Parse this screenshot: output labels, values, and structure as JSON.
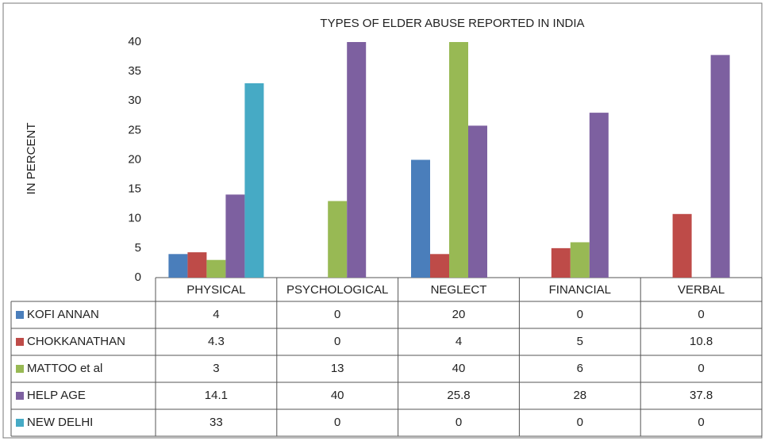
{
  "chart_data": {
    "type": "bar",
    "title": "TYPES OF  ELDER ABUSE REPORTED IN INDIA",
    "y_label": "IN PERCENT",
    "categories": [
      "PHYSICAL",
      "PSYCHOLOGICAL",
      "NEGLECT",
      "FINANCIAL",
      "VERBAL"
    ],
    "series": [
      {
        "name": "KOFI ANNAN",
        "color": "#4a7ebb",
        "values": [
          4,
          0,
          20,
          0,
          0
        ]
      },
      {
        "name": "CHOKKANATHAN",
        "color": "#be4b48",
        "values": [
          4.3,
          0,
          4,
          5,
          10.8
        ]
      },
      {
        "name": "MATTOO et al",
        "color": "#98b954",
        "values": [
          3,
          13,
          40,
          6,
          0
        ]
      },
      {
        "name": "HELP AGE",
        "color": "#7d60a0",
        "values": [
          14.1,
          40,
          25.8,
          28,
          37.8
        ]
      },
      {
        "name": "NEW DELHI",
        "color": "#46aac5",
        "values": [
          33,
          0,
          0,
          0,
          0
        ]
      }
    ],
    "ylim": [
      0,
      40
    ],
    "yticks": [
      0,
      5,
      10,
      15,
      20,
      25,
      30,
      35,
      40
    ],
    "grid": false
  }
}
